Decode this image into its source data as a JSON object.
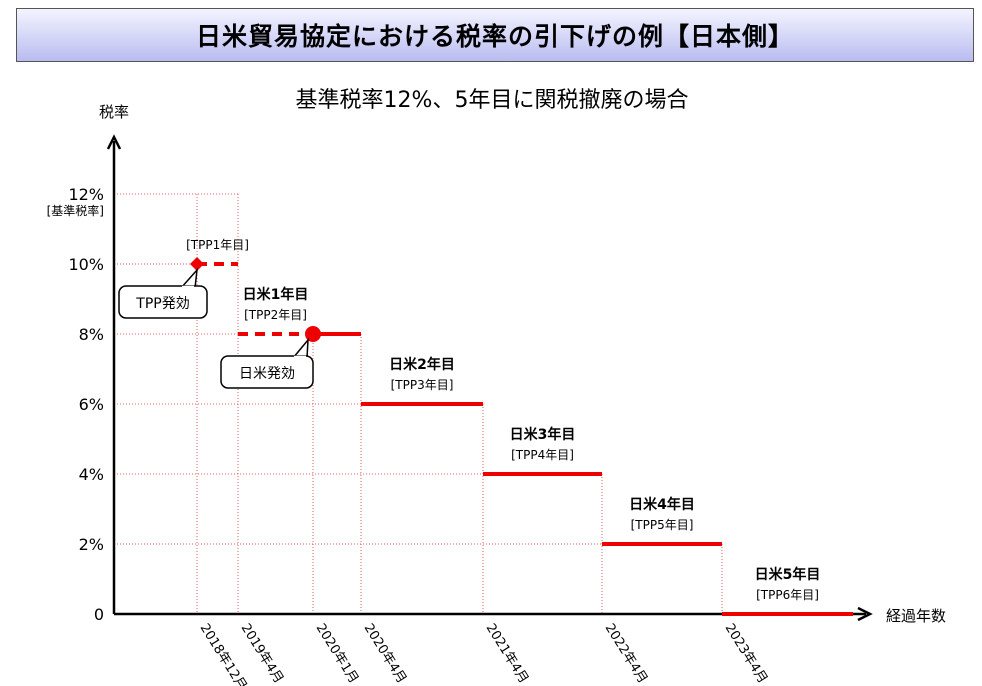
{
  "header": {
    "title": "日米貿易協定における税率の引下げの例【日本側】"
  },
  "chart_data": {
    "type": "line",
    "title": "基準税率12%、5年目に関税撤廃の場合",
    "ylabel": "税率",
    "xlabel": "経過年数",
    "ylim": [
      0,
      12
    ],
    "grid": true,
    "y_ticks": [
      {
        "value": 0,
        "label": "0"
      },
      {
        "value": 2,
        "label": "2%"
      },
      {
        "value": 4,
        "label": "4%"
      },
      {
        "value": 6,
        "label": "6%"
      },
      {
        "value": 8,
        "label": "8%"
      },
      {
        "value": 10,
        "label": "10%"
      },
      {
        "value": 12,
        "label": "12%"
      }
    ],
    "base_rate_label": "[基準税率]",
    "x_dates": [
      "2018年12月",
      "2019年4月",
      "2020年1月",
      "2020年4月",
      "2021年4月",
      "2022年4月",
      "2023年4月"
    ],
    "series": [
      {
        "steps": [
          {
            "from": "2018年12月",
            "to": "2019年4月",
            "rate": 10,
            "style": "dashed"
          },
          {
            "from": "2019年4月",
            "to": "2020年1月",
            "rate": 8,
            "style": "dashed"
          },
          {
            "from": "2020年1月",
            "to": "2020年4月",
            "rate": 8,
            "style": "solid"
          },
          {
            "from": "2020年4月",
            "to": "2021年4月",
            "rate": 6,
            "style": "solid"
          },
          {
            "from": "2021年4月",
            "to": "2022年4月",
            "rate": 4,
            "style": "solid"
          },
          {
            "from": "2022年4月",
            "to": "2023年4月",
            "rate": 2,
            "style": "solid"
          },
          {
            "from": "2023年4月",
            "to": null,
            "rate": 0,
            "style": "solid"
          }
        ]
      }
    ],
    "markers": [
      {
        "x": "2018年12月",
        "rate": 10,
        "shape": "diamond",
        "callout": "TPP発効"
      },
      {
        "x": "2020年1月",
        "rate": 8,
        "shape": "circle",
        "callout": "日米発効"
      }
    ],
    "step_labels": [
      {
        "step": 0,
        "main": "",
        "sub": "[TPP1年目]"
      },
      {
        "step": 1,
        "main": "日米1年目",
        "sub": "[TPP2年目]"
      },
      {
        "step": 3,
        "main": "日米2年目",
        "sub": "[TPP3年目]"
      },
      {
        "step": 4,
        "main": "日米3年目",
        "sub": "[TPP4年目]"
      },
      {
        "step": 5,
        "main": "日米4年目",
        "sub": "[TPP5年目]"
      },
      {
        "step": 6,
        "main": "日米5年目",
        "sub": "[TPP6年目]"
      }
    ],
    "colors": {
      "line": "#ee0000",
      "grid": "#e06060",
      "axis": "#000000"
    }
  }
}
